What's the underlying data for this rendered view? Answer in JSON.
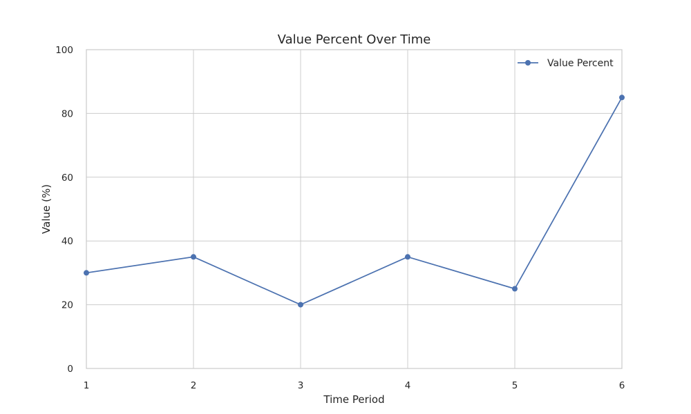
{
  "chart_data": {
    "type": "line",
    "title": "Value Percent Over Time",
    "xlabel": "Time Period",
    "ylabel": "Value (%)",
    "x": [
      1,
      2,
      3,
      4,
      5,
      6
    ],
    "xlim": [
      1,
      6
    ],
    "ylim": [
      0,
      100
    ],
    "x_ticks": [
      "1",
      "2",
      "3",
      "4",
      "5",
      "6"
    ],
    "y_ticks": [
      "0",
      "20",
      "40",
      "60",
      "80",
      "100"
    ],
    "grid": true,
    "legend_position": "top-right",
    "series": [
      {
        "name": "Value Percent",
        "values": [
          30,
          35,
          20,
          35,
          25,
          85
        ],
        "color": "#4c72b0",
        "marker": "circle"
      }
    ]
  }
}
